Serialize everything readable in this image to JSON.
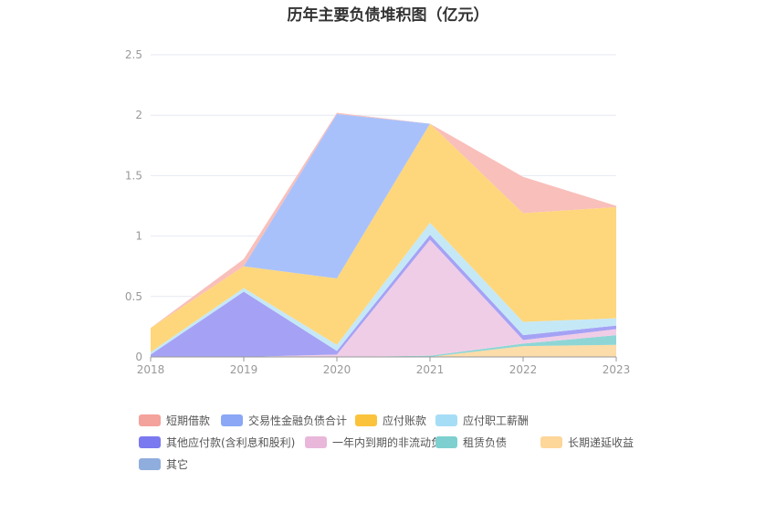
{
  "chart_data": {
    "type": "area",
    "stacked": true,
    "title": "历年主要负债堆积图（亿元）",
    "categories": [
      "2018",
      "2019",
      "2020",
      "2021",
      "2022",
      "2023"
    ],
    "ylim": [
      0,
      2.5
    ],
    "yticks": [
      "0",
      "0.5",
      "1",
      "1.5",
      "2",
      "2.5"
    ],
    "grid": true,
    "legend_position": "bottom",
    "series": [
      {
        "name": "长期递延收益",
        "color": "#FCDCA8",
        "values": [
          0,
          0,
          0,
          0,
          0.09,
          0.1
        ]
      },
      {
        "name": "租赁负债",
        "color": "#8ED6D6",
        "values": [
          0,
          0,
          0,
          0.01,
          0.02,
          0.08
        ]
      },
      {
        "name": "一年内到期的非流动负债",
        "color": "#F0CDE6",
        "values": [
          0,
          0,
          0.02,
          0.96,
          0.03,
          0.05
        ]
      },
      {
        "name": "其他应付款(含利息和股利)",
        "color": "#A5A2F5",
        "values": [
          0.02,
          0.54,
          0.03,
          0.04,
          0.04,
          0.03
        ]
      },
      {
        "name": "应付职工薪酬",
        "color": "#C5E8F7",
        "values": [
          0.02,
          0.03,
          0.05,
          0.1,
          0.11,
          0.06
        ]
      },
      {
        "name": "应付账款",
        "color": "#FED77C",
        "values": [
          0.2,
          0.18,
          0.55,
          0.82,
          0.9,
          0.92
        ]
      },
      {
        "name": "交易性金融负债合计",
        "color": "#A9C1FB",
        "values": [
          0,
          0,
          1.36,
          0,
          0,
          0
        ]
      },
      {
        "name": "短期借款",
        "color": "#F9BFBA",
        "values": [
          0,
          0.06,
          0.01,
          0,
          0.3,
          0.01
        ]
      },
      {
        "name": "其它",
        "color": "#A9C1E0",
        "values": [
          0,
          0,
          0,
          0,
          0,
          0
        ]
      }
    ],
    "legend": [
      {
        "name": "短期借款",
        "color": "#F4A29C"
      },
      {
        "name": "交易性金融负债合计",
        "color": "#8BA7F5"
      },
      {
        "name": "应付账款",
        "color": "#FBC33C"
      },
      {
        "name": "应付职工薪酬",
        "color": "#A6DDF6"
      },
      {
        "name": "其他应付款(含利息和股利)",
        "color": "#7B79EF"
      },
      {
        "name": "一年内到期的非流动负债",
        "color": "#E8B7DA"
      },
      {
        "name": "租赁负债",
        "color": "#7DD0CF"
      },
      {
        "name": "长期递延收益",
        "color": "#FDD69A"
      },
      {
        "name": "其它",
        "color": "#8FAEDD"
      }
    ]
  }
}
